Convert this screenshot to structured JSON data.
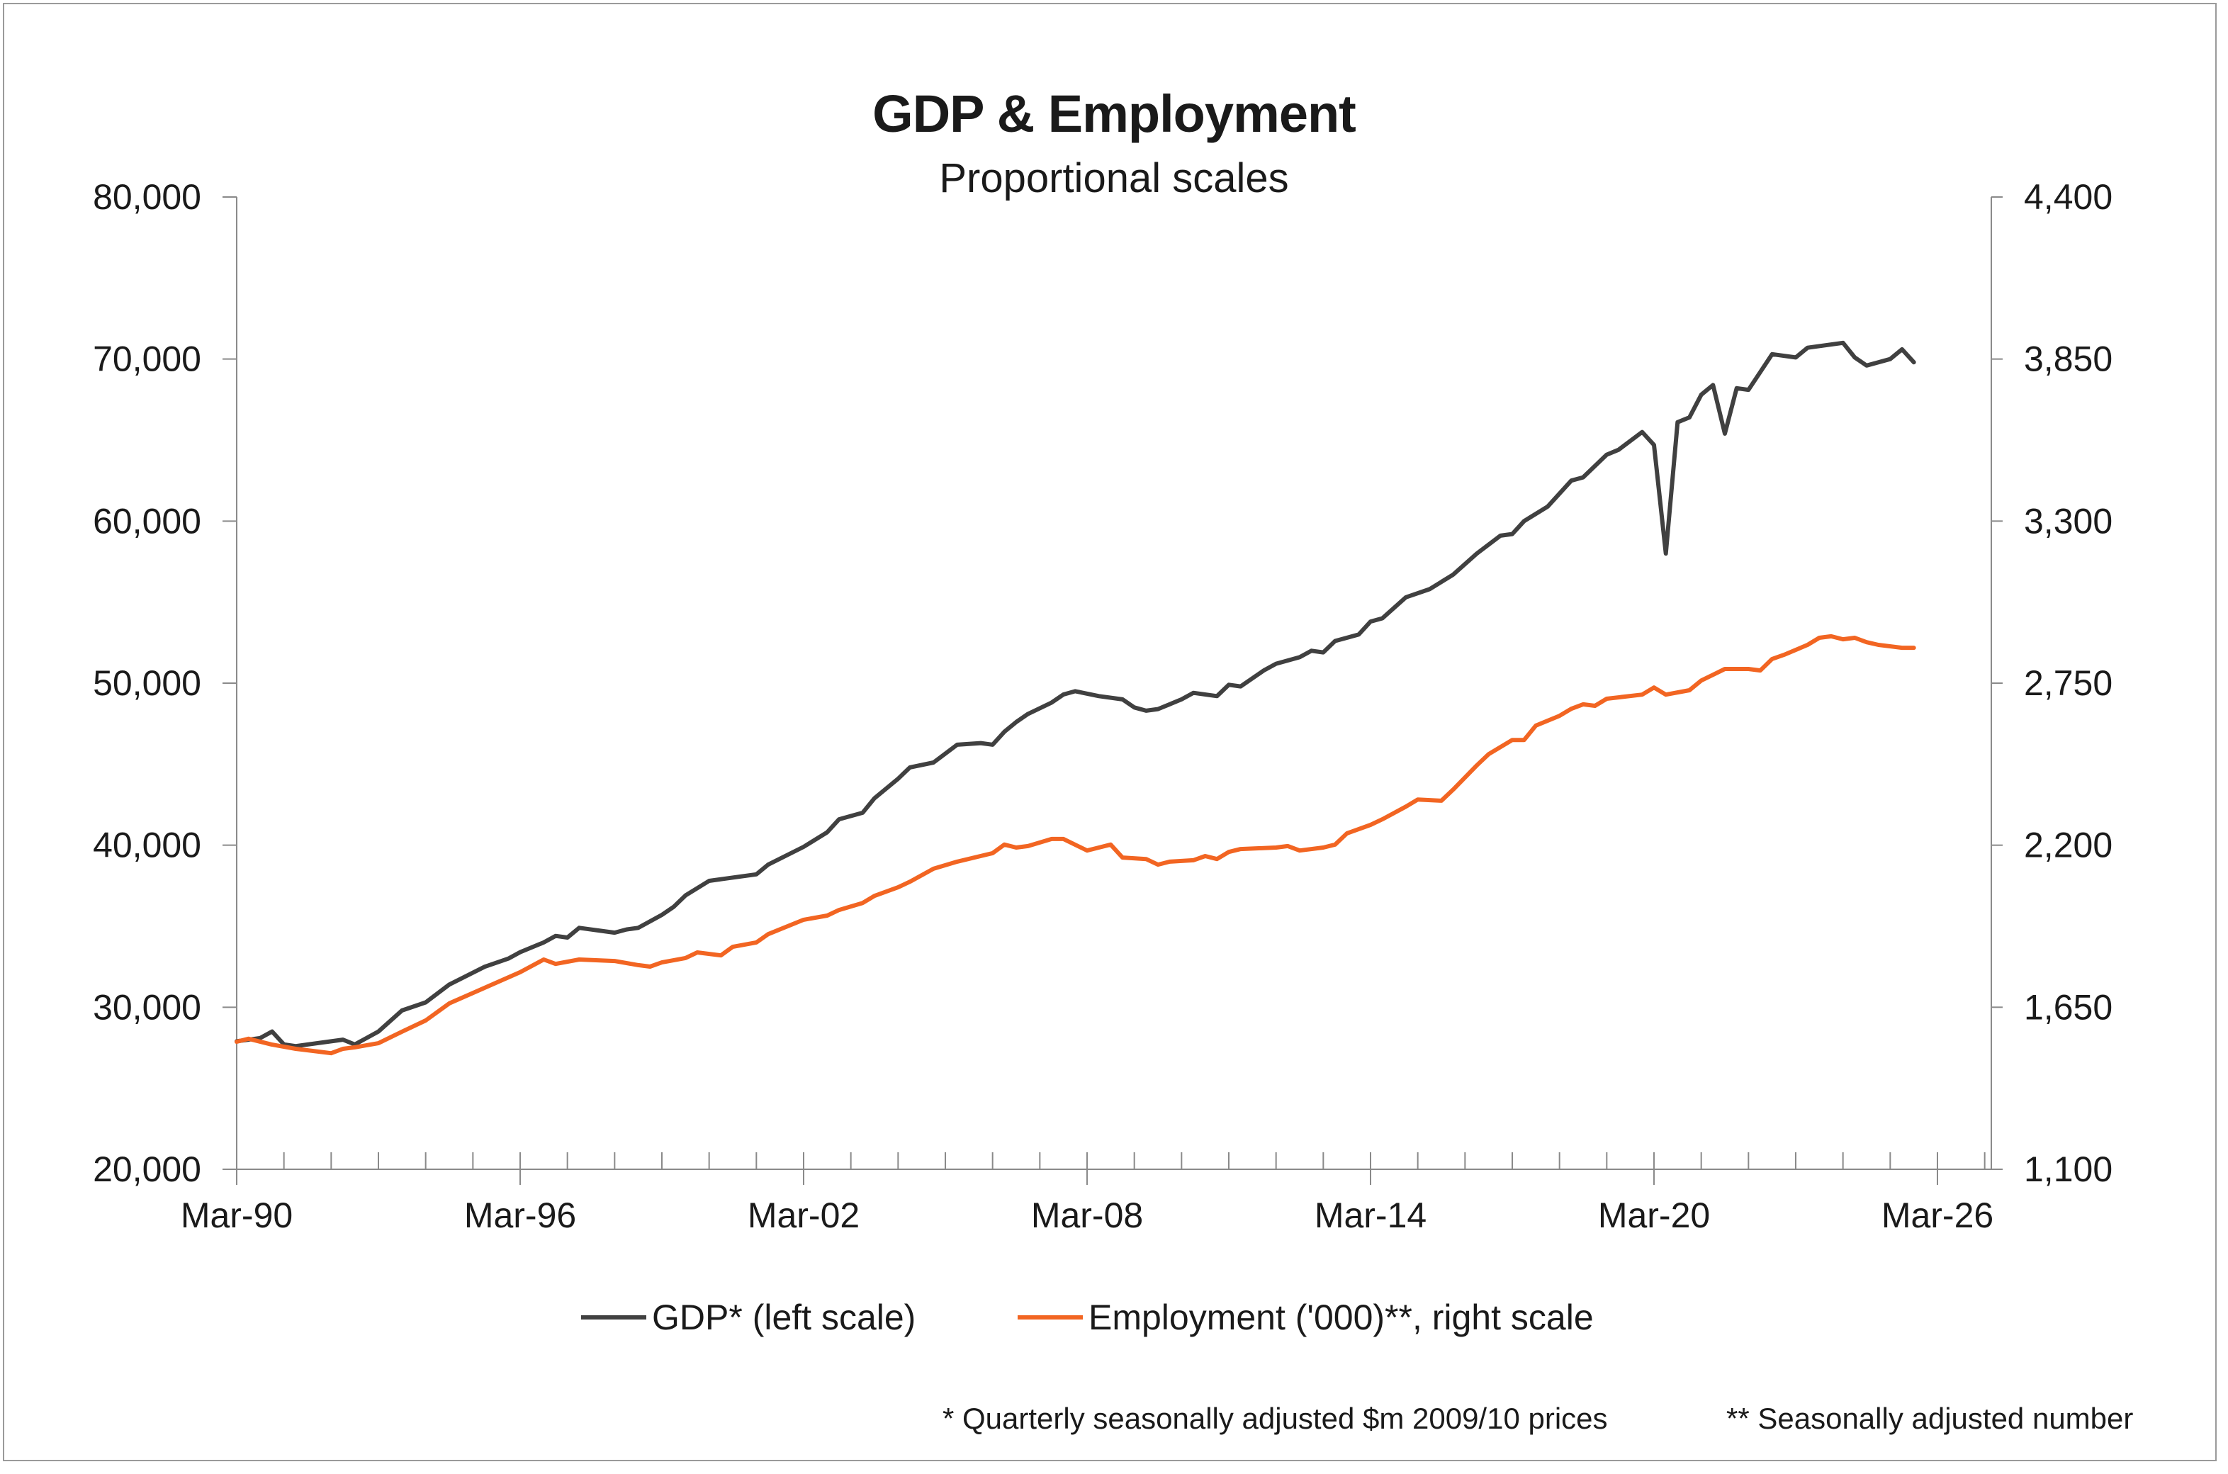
{
  "chart_data": {
    "type": "line",
    "title": "GDP & Employment",
    "subtitle": "Proportional scales",
    "x_ticks": [
      "Mar-90",
      "Mar-96",
      "Mar-02",
      "Mar-08",
      "Mar-14",
      "Mar-20",
      "Mar-26"
    ],
    "y_left": {
      "range": [
        20000,
        80000
      ],
      "ticks": [
        "20,000",
        "30,000",
        "40,000",
        "50,000",
        "60,000",
        "70,000",
        "80,000"
      ]
    },
    "y_right": {
      "range": [
        1100,
        4400
      ],
      "ticks": [
        "1,100",
        "1,650",
        "2,200",
        "2,750",
        "3,300",
        "3,850",
        "4,400"
      ]
    },
    "grid": false,
    "legend_position": "bottom",
    "series": [
      {
        "name": "GDP* (left scale)",
        "axis": "left",
        "color": "#404040",
        "x": [
          "1990-03",
          "1990-09",
          "1990-12",
          "1991-03",
          "1991-06",
          "1992-03",
          "1992-06",
          "1992-09",
          "1993-03",
          "1993-09",
          "1994-03",
          "1994-09",
          "1995-06",
          "1995-12",
          "1996-03",
          "1996-09",
          "1996-12",
          "1997-03",
          "1997-06",
          "1998-03",
          "1998-06",
          "1998-09",
          "1999-03",
          "1999-06",
          "1999-09",
          "2000-03",
          "2000-06",
          "2001-03",
          "2001-06",
          "2002-03",
          "2002-09",
          "2002-12",
          "2003-06",
          "2003-09",
          "2004-03",
          "2004-06",
          "2004-12",
          "2005-06",
          "2005-12",
          "2006-03",
          "2006-06",
          "2006-09",
          "2006-12",
          "2007-06",
          "2007-09",
          "2007-12",
          "2008-06",
          "2008-12",
          "2009-03",
          "2009-06",
          "2009-09",
          "2010-03",
          "2010-06",
          "2010-12",
          "2011-03",
          "2011-06",
          "2011-12",
          "2012-03",
          "2012-09",
          "2012-12",
          "2013-03",
          "2013-06",
          "2013-12",
          "2014-03",
          "2014-06",
          "2014-12",
          "2015-06",
          "2015-12",
          "2016-06",
          "2016-12",
          "2017-03",
          "2017-06",
          "2017-12",
          "2018-06",
          "2018-09",
          "2019-03",
          "2019-06",
          "2019-12",
          "2020-03",
          "2020-06",
          "2020-09",
          "2020-12",
          "2021-03",
          "2021-06",
          "2021-09",
          "2021-12",
          "2022-03",
          "2022-06",
          "2022-09",
          "2023-03",
          "2023-06",
          "2024-03",
          "2024-06",
          "2024-09",
          "2025-03",
          "2025-06",
          "2025-09"
        ],
        "values": [
          27900,
          28100,
          28500,
          27700,
          27600,
          27900,
          28000,
          27700,
          28500,
          29800,
          30300,
          31400,
          32500,
          33000,
          33400,
          34000,
          34400,
          34300,
          34900,
          34600,
          34800,
          34900,
          35700,
          36200,
          36900,
          37800,
          37900,
          38200,
          38800,
          39900,
          40800,
          41600,
          42000,
          42900,
          44100,
          44800,
          45100,
          46200,
          46300,
          46200,
          47000,
          47600,
          48100,
          48800,
          49300,
          49500,
          49200,
          49000,
          48500,
          48300,
          48400,
          49000,
          49400,
          49200,
          49900,
          49800,
          50800,
          51200,
          51600,
          52000,
          51900,
          52600,
          53000,
          53800,
          54000,
          55300,
          55800,
          56700,
          58000,
          59100,
          59200,
          60000,
          60900,
          62500,
          62700,
          64100,
          64400,
          65500,
          64700,
          58000,
          66100,
          66400,
          67800,
          68400,
          65400,
          68200,
          68100,
          69200,
          70300,
          70100,
          70700,
          71000,
          70100,
          69600,
          70000,
          70600,
          69800
        ]
      },
      {
        "name": "Employment ('000)**, right scale",
        "axis": "right",
        "color": "#f26522",
        "x": [
          "1990-03",
          "1990-06",
          "1990-12",
          "1991-06",
          "1992-03",
          "1992-06",
          "1992-09",
          "1993-03",
          "1993-09",
          "1994-03",
          "1994-09",
          "1995-06",
          "1996-03",
          "1996-09",
          "1996-12",
          "1997-06",
          "1998-03",
          "1998-09",
          "1998-12",
          "1999-03",
          "1999-09",
          "1999-12",
          "2000-06",
          "2000-09",
          "2001-03",
          "2001-06",
          "2002-03",
          "2002-09",
          "2002-12",
          "2003-06",
          "2003-09",
          "2004-03",
          "2004-06",
          "2004-12",
          "2005-06",
          "2006-03",
          "2006-06",
          "2006-09",
          "2006-12",
          "2007-06",
          "2007-09",
          "2008-03",
          "2008-06",
          "2008-09",
          "2008-12",
          "2009-06",
          "2009-09",
          "2009-12",
          "2010-06",
          "2010-09",
          "2010-12",
          "2011-03",
          "2011-06",
          "2012-03",
          "2012-06",
          "2012-09",
          "2013-03",
          "2013-06",
          "2013-09",
          "2014-03",
          "2014-06",
          "2014-12",
          "2015-03",
          "2015-09",
          "2015-12",
          "2016-06",
          "2016-09",
          "2017-03",
          "2017-06",
          "2017-09",
          "2018-03",
          "2018-06",
          "2018-09",
          "2018-12",
          "2019-03",
          "2019-12",
          "2020-03",
          "2020-06",
          "2020-12",
          "2021-03",
          "2021-09",
          "2022-03",
          "2022-06",
          "2022-09",
          "2022-12",
          "2023-06",
          "2023-09",
          "2023-12",
          "2024-03",
          "2024-06",
          "2024-09",
          "2024-12",
          "2025-06",
          "2025-09"
        ],
        "values": [
          1533,
          1543,
          1523,
          1509,
          1494,
          1509,
          1514,
          1528,
          1567,
          1605,
          1663,
          1716,
          1769,
          1812,
          1797,
          1812,
          1807,
          1793,
          1788,
          1802,
          1817,
          1836,
          1826,
          1855,
          1870,
          1898,
          1947,
          1961,
          1980,
          2004,
          2028,
          2057,
          2076,
          2120,
          2144,
          2173,
          2202,
          2192,
          2197,
          2221,
          2221,
          2182,
          2192,
          2202,
          2158,
          2153,
          2134,
          2144,
          2149,
          2163,
          2153,
          2177,
          2187,
          2192,
          2197,
          2182,
          2192,
          2202,
          2240,
          2269,
          2288,
          2331,
          2355,
          2351,
          2389,
          2471,
          2509,
          2557,
          2557,
          2606,
          2639,
          2663,
          2678,
          2673,
          2697,
          2711,
          2735,
          2711,
          2726,
          2759,
          2798,
          2798,
          2793,
          2832,
          2846,
          2880,
          2904,
          2909,
          2899,
          2904,
          2889,
          2880,
          2870,
          2870
        ]
      }
    ],
    "footnotes": [
      "* Quarterly seasonally adjusted $m 2009/10 prices",
      "** Seasonally adjusted number"
    ]
  }
}
